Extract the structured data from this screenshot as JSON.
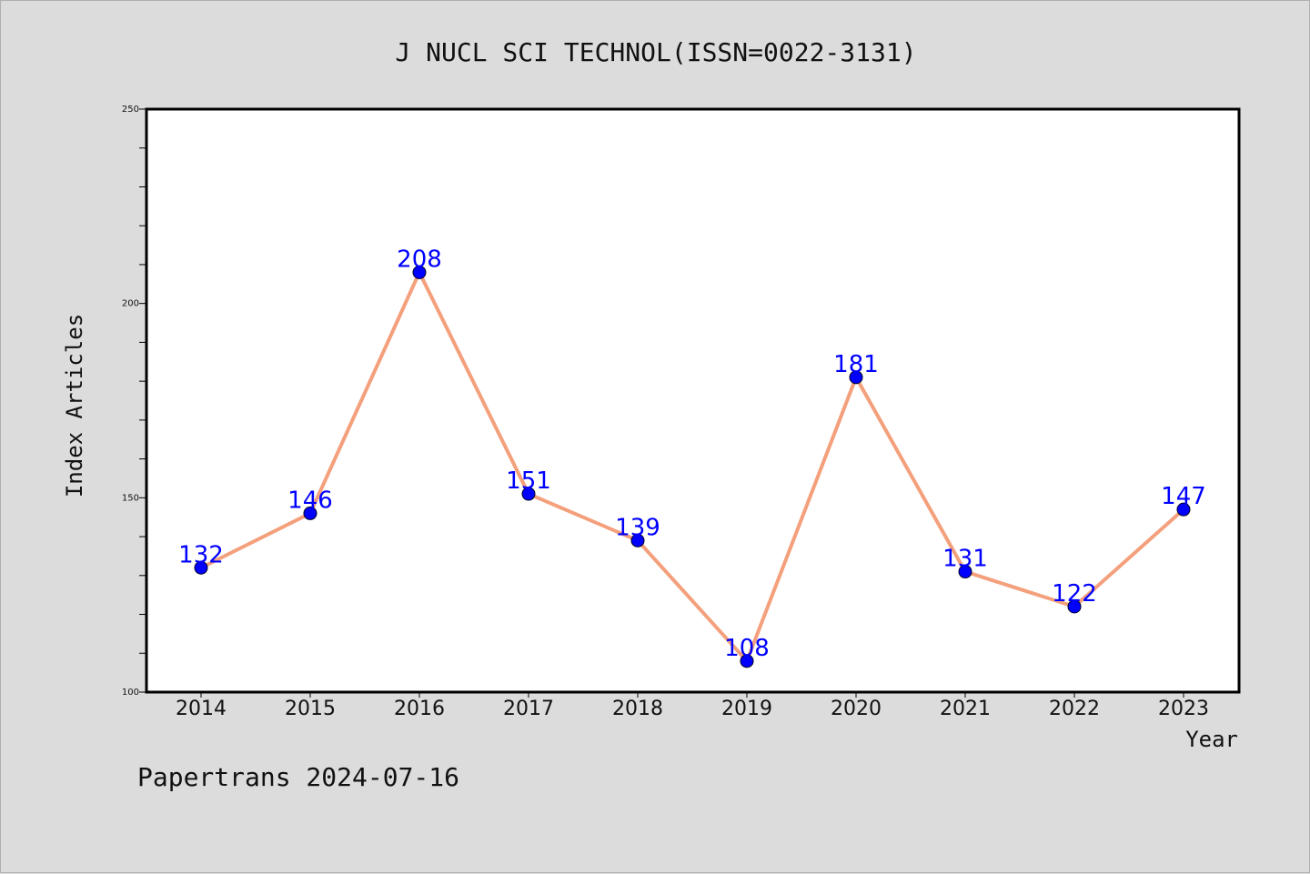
{
  "chart_data": {
    "type": "line",
    "title": "J NUCL SCI TECHNOL(ISSN=0022-3131)",
    "xlabel": "Year",
    "ylabel": "Index Articles",
    "categories": [
      "2014",
      "2015",
      "2016",
      "2017",
      "2018",
      "2019",
      "2020",
      "2021",
      "2022",
      "2023"
    ],
    "values": [
      132,
      146,
      208,
      151,
      139,
      108,
      181,
      131,
      122,
      147
    ],
    "ylim": [
      100,
      250
    ],
    "yticks": [
      "100",
      "150",
      "200",
      "250"
    ],
    "grid": false,
    "line_color": "#f4a07c",
    "marker_color": "#0000ff",
    "label_color": "#0000ff"
  },
  "footer": {
    "text": "Papertrans 2024-07-16"
  }
}
